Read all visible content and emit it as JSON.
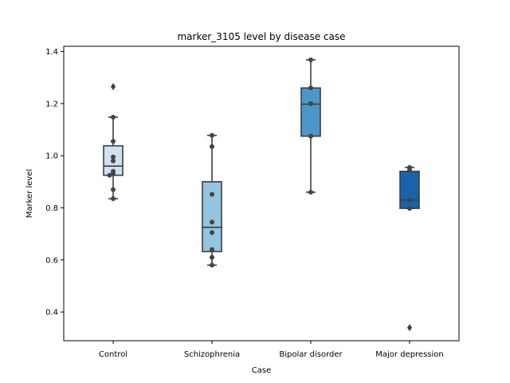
{
  "chart_data": {
    "type": "box",
    "title": "marker_3105 level by disease case",
    "xlabel": "Case",
    "ylabel": "Marker level",
    "ylim": [
      0.29,
      1.42
    ],
    "yticks": [
      0.4,
      0.6,
      0.8,
      1.0,
      1.2,
      1.4
    ],
    "ytick_labels": [
      "0.4",
      "0.6",
      "0.8",
      "1.0",
      "1.2",
      "1.4"
    ],
    "grid": false,
    "categories": [
      "Control",
      "Schizophrenia",
      "Bipolar disorder",
      "Major depression"
    ],
    "boxes": [
      {
        "category": "Control",
        "color": "#d0e1f2",
        "whisker_low": 0.835,
        "q1": 0.925,
        "median": 0.96,
        "q3": 1.038,
        "whisker_high": 1.148,
        "outliers": [
          1.265
        ],
        "points": [
          0.835,
          0.87,
          0.93,
          0.925,
          0.94,
          0.98,
          0.995,
          1.055,
          1.148
        ]
      },
      {
        "category": "Schizophrenia",
        "color": "#94c4df",
        "whisker_low": 0.58,
        "q1": 0.632,
        "median": 0.725,
        "q3": 0.9,
        "whisker_high": 1.078,
        "outliers": [],
        "points": [
          0.58,
          0.61,
          0.64,
          0.705,
          0.745,
          0.852,
          1.035,
          1.078
        ]
      },
      {
        "category": "Bipolar disorder",
        "color": "#4a98c9",
        "whisker_low": 0.86,
        "q1": 1.075,
        "median": 1.198,
        "q3": 1.26,
        "whisker_high": 1.368,
        "outliers": [],
        "points": [
          0.86,
          1.075,
          1.2,
          1.26,
          1.368
        ]
      },
      {
        "category": "Major depression",
        "color": "#1764ab",
        "whisker_low": 0.798,
        "q1": 0.798,
        "median": 0.83,
        "q3": 0.94,
        "whisker_high": 0.955,
        "outliers": [
          0.34
        ],
        "points": [
          0.798,
          0.83,
          0.945,
          0.955
        ]
      }
    ]
  }
}
